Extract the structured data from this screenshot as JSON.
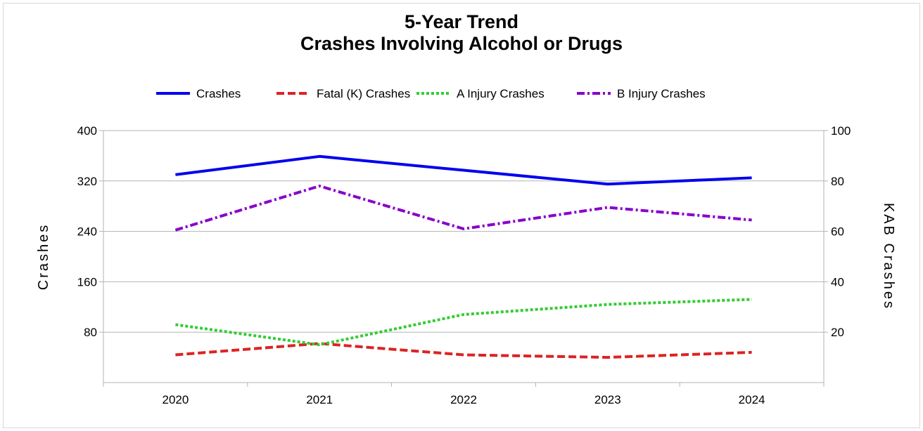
{
  "chart_data": {
    "type": "line",
    "title": "5-Year Trend",
    "subtitle": "Crashes Involving Alcohol or Drugs",
    "categories": [
      "2020",
      "2021",
      "2022",
      "2023",
      "2024"
    ],
    "ylabel": "Crashes",
    "y2label": "KAB Crashes",
    "ylim": [
      0,
      400
    ],
    "y2lim": [
      0,
      100
    ],
    "yticks": [
      "80",
      "160",
      "240",
      "320",
      "400"
    ],
    "y2ticks": [
      "20",
      "40",
      "60",
      "80",
      "100"
    ],
    "grid": true,
    "legend_position": "top",
    "series": [
      {
        "name": "Crashes",
        "axis": "left",
        "color": "#0000ee",
        "dash": "solid",
        "values": [
          330,
          359,
          337,
          315,
          325
        ]
      },
      {
        "name": "Fatal (K) Crashes",
        "axis": "right",
        "color": "#dd2222",
        "dash": "dashed",
        "values": [
          11,
          15.5,
          11,
          10,
          12
        ]
      },
      {
        "name": "A Injury Crashes",
        "axis": "right",
        "color": "#33cc33",
        "dash": "dotted",
        "values": [
          23,
          15,
          27,
          31,
          33
        ]
      },
      {
        "name": "B Injury Crashes",
        "axis": "right",
        "color": "#8800cc",
        "dash": "dashdot",
        "values": [
          60.5,
          78,
          61,
          69.5,
          64.5
        ]
      }
    ]
  }
}
